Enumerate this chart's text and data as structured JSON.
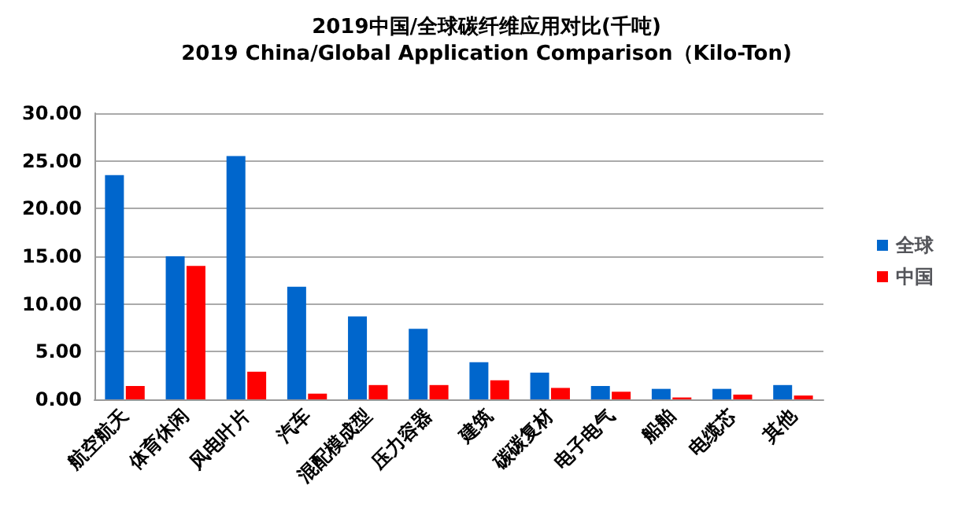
{
  "chart_data": {
    "type": "bar",
    "title": "2019中国/全球碳纤维应用对比(千吨)",
    "subtitle": "2019 China/Global Application Comparison（Kilo-Ton)",
    "categories": [
      "航空航天",
      "体育休闲",
      "风电叶片",
      "汽车",
      "混配模成型",
      "压力容器",
      "建筑",
      "碳碳复材",
      "电子电气",
      "船舶",
      "电缆芯",
      "其他"
    ],
    "series": [
      {
        "name": "全球",
        "color": "#0066cc",
        "values": [
          23.5,
          15.0,
          25.5,
          11.8,
          8.7,
          7.4,
          3.9,
          2.8,
          1.4,
          1.1,
          1.1,
          1.5
        ]
      },
      {
        "name": "中国",
        "color": "#ff0000",
        "values": [
          1.4,
          14.0,
          2.9,
          0.6,
          1.5,
          1.5,
          2.0,
          1.2,
          0.8,
          0.2,
          0.5,
          0.4
        ]
      }
    ],
    "ylim": [
      0,
      30
    ],
    "yticks": [
      {
        "value": 0,
        "label": "0.00"
      },
      {
        "value": 5,
        "label": "5.00"
      },
      {
        "value": 10,
        "label": "10.00"
      },
      {
        "value": 15,
        "label": "15.00"
      },
      {
        "value": 20,
        "label": "20.00"
      },
      {
        "value": 25,
        "label": "25.00"
      },
      {
        "value": 30,
        "label": "30.00"
      }
    ],
    "grid": "y",
    "legend": "right"
  }
}
